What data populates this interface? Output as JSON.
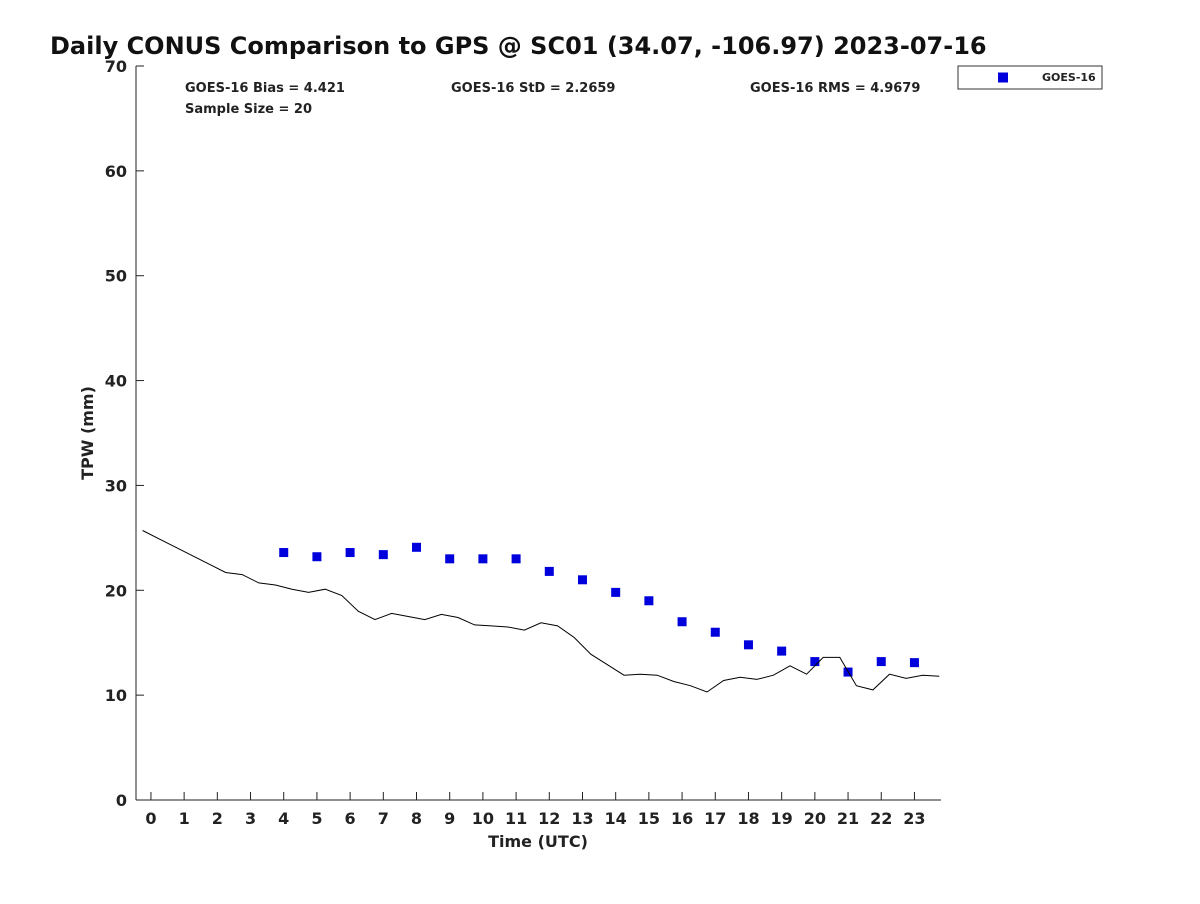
{
  "chart_data": {
    "type": "scatter",
    "title": "Daily CONUS Comparison to GPS @ SC01 (34.07, -106.97) 2023-07-16",
    "xlabel": "Time (UTC)",
    "ylabel": "TPW (mm)",
    "xlim": [
      -0.45,
      23.8
    ],
    "ylim": [
      0,
      70
    ],
    "x_ticks": [
      0,
      1,
      2,
      3,
      4,
      5,
      6,
      7,
      8,
      9,
      10,
      11,
      12,
      13,
      14,
      15,
      16,
      17,
      18,
      19,
      20,
      21,
      22,
      23
    ],
    "y_ticks": [
      0,
      10,
      20,
      30,
      40,
      50,
      60,
      70
    ],
    "grid": false,
    "legend_position": "top-right",
    "stats": {
      "bias": "GOES-16 Bias = 4.421",
      "std": "GOES-16 StD = 2.2659",
      "rms": "GOES-16 RMS = 4.9679",
      "sample": "Sample Size = 20"
    },
    "series": [
      {
        "name": "GOES-16",
        "kind": "markers",
        "color": "#0000dd",
        "x": [
          4,
          5,
          6,
          7,
          8,
          9,
          10,
          11,
          12,
          13,
          14,
          15,
          16,
          17,
          18,
          19,
          20,
          21,
          22,
          23
        ],
        "y": [
          23.6,
          23.2,
          23.6,
          23.4,
          24.1,
          23.0,
          23.0,
          23.0,
          21.8,
          21.0,
          19.8,
          19.0,
          17.0,
          16.0,
          14.8,
          14.2,
          13.2,
          12.2,
          13.2,
          13.1
        ]
      },
      {
        "kind": "line",
        "color": "#000000",
        "x": [
          -0.25,
          0.25,
          0.75,
          1.25,
          1.75,
          2.25,
          2.75,
          3.25,
          3.75,
          4.25,
          4.75,
          5.25,
          5.75,
          6.25,
          6.75,
          7.25,
          7.75,
          8.25,
          8.75,
          9.25,
          9.75,
          10.25,
          10.75,
          11.25,
          11.75,
          12.25,
          12.75,
          13.25,
          13.75,
          14.25,
          14.75,
          15.25,
          15.75,
          16.25,
          16.75,
          17.25,
          17.75,
          18.25,
          18.75,
          19.25,
          19.75,
          20.25,
          20.75,
          21.25,
          21.75,
          22.25,
          22.75,
          23.25,
          23.75
        ],
        "y": [
          25.7,
          24.9,
          24.1,
          23.3,
          22.5,
          21.7,
          21.5,
          20.7,
          20.5,
          20.1,
          19.8,
          20.1,
          19.5,
          18.0,
          17.2,
          17.8,
          17.5,
          17.2,
          17.7,
          17.4,
          16.7,
          16.6,
          16.5,
          16.2,
          16.9,
          16.6,
          15.5,
          13.9,
          12.9,
          11.9,
          12.0,
          11.9,
          11.3,
          10.9,
          10.3,
          11.4,
          11.7,
          11.5,
          11.9,
          12.8,
          12.0,
          13.6,
          13.6,
          10.9,
          10.5,
          12.0,
          11.6,
          11.9,
          11.8
        ]
      }
    ]
  }
}
